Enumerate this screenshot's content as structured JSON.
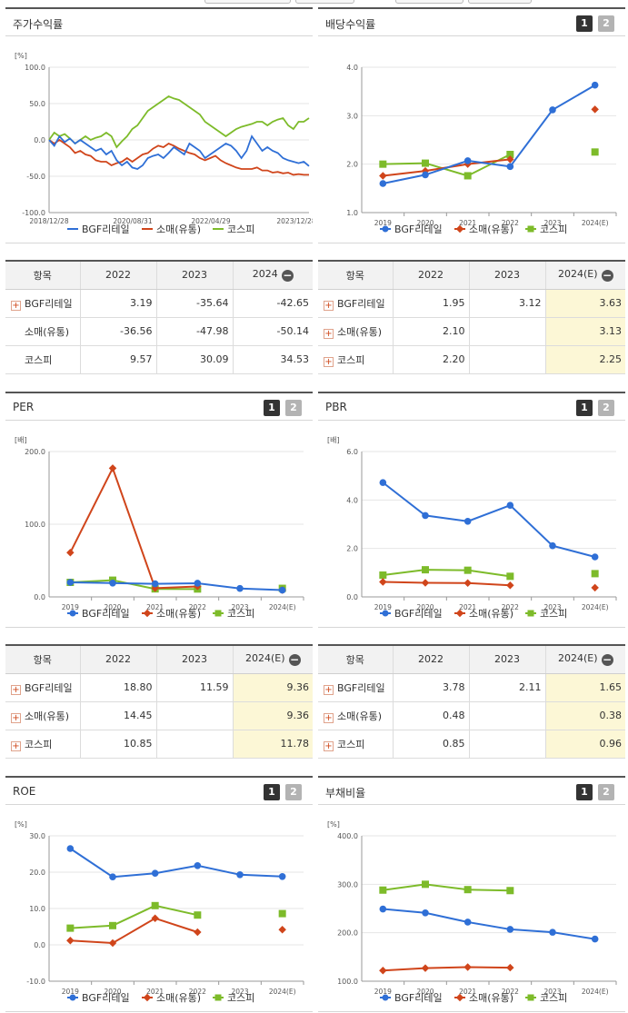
{
  "legend": [
    "BGF리테일",
    "소매(유통)",
    "코스피"
  ],
  "colors": {
    "s0": "#2f6fd6",
    "s1": "#d0451b",
    "s2": "#7dbb2a"
  },
  "pager": [
    "1",
    "2"
  ],
  "panels": {
    "stock": {
      "title": "주가수익률",
      "unit": "[%]"
    },
    "div": {
      "title": "배당수익률",
      "unit": ""
    },
    "per": {
      "title": "PER",
      "unit": "[배]"
    },
    "pbr": {
      "title": "PBR",
      "unit": "[배]"
    },
    "roe": {
      "title": "ROE",
      "unit": "[%]"
    },
    "debt": {
      "title": "부채비율",
      "unit": "[%]"
    }
  },
  "tables": {
    "t1": {
      "headers": [
        "항목",
        "2022",
        "2023",
        "2024"
      ],
      "rows": [
        {
          "label": "BGF리테일",
          "plus": true,
          "v": [
            "3.19",
            "-35.64",
            "-42.65"
          ]
        },
        {
          "label": "소매(유통)",
          "plus": false,
          "v": [
            "-36.56",
            "-47.98",
            "-50.14"
          ]
        },
        {
          "label": "코스피",
          "plus": false,
          "v": [
            "9.57",
            "30.09",
            "34.53"
          ]
        }
      ]
    },
    "t2": {
      "headers": [
        "항목",
        "2022",
        "2023",
        "2024(E)"
      ],
      "rows": [
        {
          "label": "BGF리테일",
          "plus": true,
          "v": [
            "1.95",
            "3.12",
            "3.63"
          ]
        },
        {
          "label": "소매(유통)",
          "plus": true,
          "v": [
            "2.10",
            "",
            "3.13"
          ]
        },
        {
          "label": "코스피",
          "plus": true,
          "v": [
            "2.20",
            "",
            "2.25"
          ]
        }
      ]
    },
    "t3": {
      "headers": [
        "항목",
        "2022",
        "2023",
        "2024(E)"
      ],
      "rows": [
        {
          "label": "BGF리테일",
          "plus": true,
          "v": [
            "18.80",
            "11.59",
            "9.36"
          ]
        },
        {
          "label": "소매(유통)",
          "plus": true,
          "v": [
            "14.45",
            "",
            "9.36"
          ]
        },
        {
          "label": "코스피",
          "plus": true,
          "v": [
            "10.85",
            "",
            "11.78"
          ]
        }
      ]
    },
    "t4": {
      "headers": [
        "항목",
        "2022",
        "2023",
        "2024(E)"
      ],
      "rows": [
        {
          "label": "BGF리테일",
          "plus": true,
          "v": [
            "3.78",
            "2.11",
            "1.65"
          ]
        },
        {
          "label": "소매(유통)",
          "plus": true,
          "v": [
            "0.48",
            "",
            "0.38"
          ]
        },
        {
          "label": "코스피",
          "plus": true,
          "v": [
            "0.85",
            "",
            "0.96"
          ]
        }
      ]
    }
  },
  "chart_data": [
    {
      "id": "stock",
      "type": "line",
      "title": "주가수익률",
      "ylabel": "[%]",
      "ylim": [
        -100,
        100
      ],
      "yticks": [
        "100.0",
        "50.0",
        "0.0",
        "-50.0",
        "-100.0"
      ],
      "xlabels": [
        "2018/12/28",
        "2020/08/31",
        "2022/04/29",
        "2023/12/28"
      ],
      "series": [
        {
          "name": "BGF리테일",
          "values": [
            0,
            -8,
            5,
            -3,
            2,
            -5,
            0,
            -5,
            -10,
            -15,
            -12,
            -20,
            -15,
            -28,
            -35,
            -30,
            -38,
            -40,
            -35,
            -25,
            -22,
            -20,
            -25,
            -18,
            -10,
            -15,
            -20,
            -5,
            -10,
            -15,
            -25,
            -20,
            -15,
            -10,
            -5,
            -8,
            -15,
            -25,
            -15,
            5,
            -5,
            -15,
            -10,
            -15,
            -18,
            -25,
            -28,
            -30,
            -32,
            -30,
            -36
          ]
        },
        {
          "name": "소매(유통)",
          "values": [
            0,
            -5,
            0,
            -5,
            -10,
            -18,
            -15,
            -20,
            -22,
            -28,
            -30,
            -30,
            -35,
            -32,
            -30,
            -25,
            -30,
            -25,
            -20,
            -18,
            -12,
            -8,
            -10,
            -5,
            -8,
            -12,
            -15,
            -18,
            -20,
            -25,
            -28,
            -25,
            -22,
            -28,
            -32,
            -35,
            -38,
            -40,
            -40,
            -40,
            -38,
            -42,
            -42,
            -45,
            -44,
            -46,
            -45,
            -48,
            -47,
            -48,
            -48
          ]
        },
        {
          "name": "코스피",
          "values": [
            0,
            10,
            5,
            8,
            2,
            -5,
            0,
            5,
            0,
            3,
            5,
            10,
            5,
            -10,
            -2,
            5,
            15,
            20,
            30,
            40,
            45,
            50,
            55,
            60,
            57,
            55,
            50,
            45,
            40,
            35,
            25,
            20,
            15,
            10,
            5,
            10,
            15,
            18,
            20,
            22,
            25,
            25,
            20,
            25,
            28,
            30,
            20,
            15,
            25,
            25,
            30
          ]
        }
      ]
    },
    {
      "id": "div",
      "type": "line",
      "title": "배당수익률",
      "ylim": [
        1,
        4
      ],
      "yticks": [
        "4.0",
        "3.0",
        "2.0",
        "1.0"
      ],
      "categories": [
        "2019",
        "2020",
        "2021",
        "2022",
        "2023",
        "2024(E)"
      ],
      "series": [
        {
          "name": "BGF리테일",
          "values": [
            1.6,
            1.78,
            2.07,
            1.95,
            3.12,
            3.63
          ]
        },
        {
          "name": "소매(유통)",
          "values": [
            1.76,
            1.86,
            2.0,
            2.1,
            null,
            3.13
          ]
        },
        {
          "name": "코스피",
          "values": [
            2.0,
            2.02,
            1.76,
            2.2,
            null,
            2.25
          ]
        }
      ]
    },
    {
      "id": "per",
      "type": "line",
      "title": "PER",
      "ylim": [
        0,
        200
      ],
      "yticks": [
        "200.0",
        "100.0",
        "0.0"
      ],
      "categories": [
        "2019",
        "2020",
        "2021",
        "2022",
        "2023",
        "2024(E)"
      ],
      "series": [
        {
          "name": "BGF리테일",
          "values": [
            20,
            19,
            18,
            18.8,
            11.59,
            9.36
          ]
        },
        {
          "name": "소매(유통)",
          "values": [
            61,
            177,
            12,
            14.45,
            null,
            9.36
          ]
        },
        {
          "name": "코스피",
          "values": [
            20,
            23,
            11,
            10.85,
            null,
            11.78
          ]
        }
      ]
    },
    {
      "id": "pbr",
      "type": "line",
      "title": "PBR",
      "ylim": [
        0,
        6
      ],
      "yticks": [
        "6.0",
        "4.0",
        "2.0",
        "0.0"
      ],
      "categories": [
        "2019",
        "2020",
        "2021",
        "2022",
        "2023",
        "2024(E)"
      ],
      "series": [
        {
          "name": "BGF리테일",
          "values": [
            4.72,
            3.36,
            3.12,
            3.78,
            2.11,
            1.65
          ]
        },
        {
          "name": "소매(유통)",
          "values": [
            0.62,
            0.58,
            0.57,
            0.48,
            null,
            0.38
          ]
        },
        {
          "name": "코스피",
          "values": [
            0.9,
            1.12,
            1.1,
            0.85,
            null,
            0.96
          ]
        }
      ]
    },
    {
      "id": "roe",
      "type": "line",
      "title": "ROE",
      "ylim": [
        -10,
        30
      ],
      "yticks": [
        "30.0",
        "20.0",
        "10.0",
        "0.0",
        "-10.0"
      ],
      "categories": [
        "2019",
        "2020",
        "2021",
        "2022",
        "2023",
        "2024(E)"
      ],
      "series": [
        {
          "name": "BGF리테일",
          "values": [
            26.5,
            18.7,
            19.7,
            21.8,
            19.3,
            18.8
          ]
        },
        {
          "name": "소매(유통)",
          "values": [
            1.2,
            0.5,
            7.3,
            3.5,
            null,
            4.2
          ]
        },
        {
          "name": "코스피",
          "values": [
            4.6,
            5.3,
            10.8,
            8.2,
            null,
            8.6
          ]
        }
      ]
    },
    {
      "id": "debt",
      "type": "line",
      "title": "부채비율",
      "ylim": [
        100,
        400
      ],
      "yticks": [
        "400.0",
        "300.0",
        "200.0",
        "100.0"
      ],
      "categories": [
        "2019",
        "2020",
        "2021",
        "2022",
        "2023",
        "2024(E)"
      ],
      "series": [
        {
          "name": "BGF리테일",
          "values": [
            249,
            241,
            222,
            207,
            201,
            187
          ]
        },
        {
          "name": "소매(유통)",
          "values": [
            122,
            127,
            129,
            128,
            null,
            null
          ]
        },
        {
          "name": "코스피",
          "values": [
            288,
            300,
            289,
            287,
            null,
            null
          ]
        }
      ]
    }
  ]
}
